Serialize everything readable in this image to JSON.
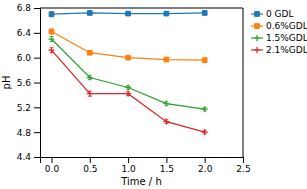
{
  "chart_data": {
    "type": "line",
    "x": [
      0.0,
      0.5,
      1.0,
      1.5,
      2.0
    ],
    "series": [
      {
        "name": "0 GDL",
        "values": [
          6.7,
          6.72,
          6.71,
          6.71,
          6.72
        ],
        "yerr": [
          0.04,
          0.02,
          0.02,
          0.02,
          0.03
        ],
        "marker": "square"
      },
      {
        "name": "0.6%GDL",
        "values": [
          6.42,
          6.08,
          6.0,
          5.97,
          5.96
        ],
        "yerr": [
          0.04,
          0.03,
          0.02,
          0.02,
          0.02
        ],
        "marker": "square"
      },
      {
        "name": "1.5%GDL",
        "values": [
          6.3,
          5.68,
          5.52,
          5.26,
          5.17
        ],
        "yerr": [
          0.04,
          0.03,
          0.03,
          0.03,
          0.03
        ],
        "marker": "plus"
      },
      {
        "name": "2.1%GDL",
        "values": [
          6.12,
          5.42,
          5.42,
          4.97,
          4.8
        ],
        "yerr": [
          0.04,
          0.04,
          0.03,
          0.03,
          0.03
        ],
        "marker": "plus"
      }
    ],
    "xlabel": "Time / h",
    "ylabel": "pH",
    "xlim": [
      -0.15,
      2.5
    ],
    "ylim": [
      4.4,
      6.8
    ],
    "xticks": [
      {
        "value": 0.0,
        "label": "0.0"
      },
      0.5,
      {
        "value": 1.0,
        "label": "1.0"
      },
      1.5,
      {
        "value": 2.0,
        "label": "2.0"
      },
      2.5
    ],
    "yticks": [
      4.4,
      4.8,
      5.2,
      5.6,
      {
        "value": 6.0,
        "label": "6.0"
      },
      6.4,
      6.8
    ],
    "grid": false,
    "legend": "right"
  }
}
